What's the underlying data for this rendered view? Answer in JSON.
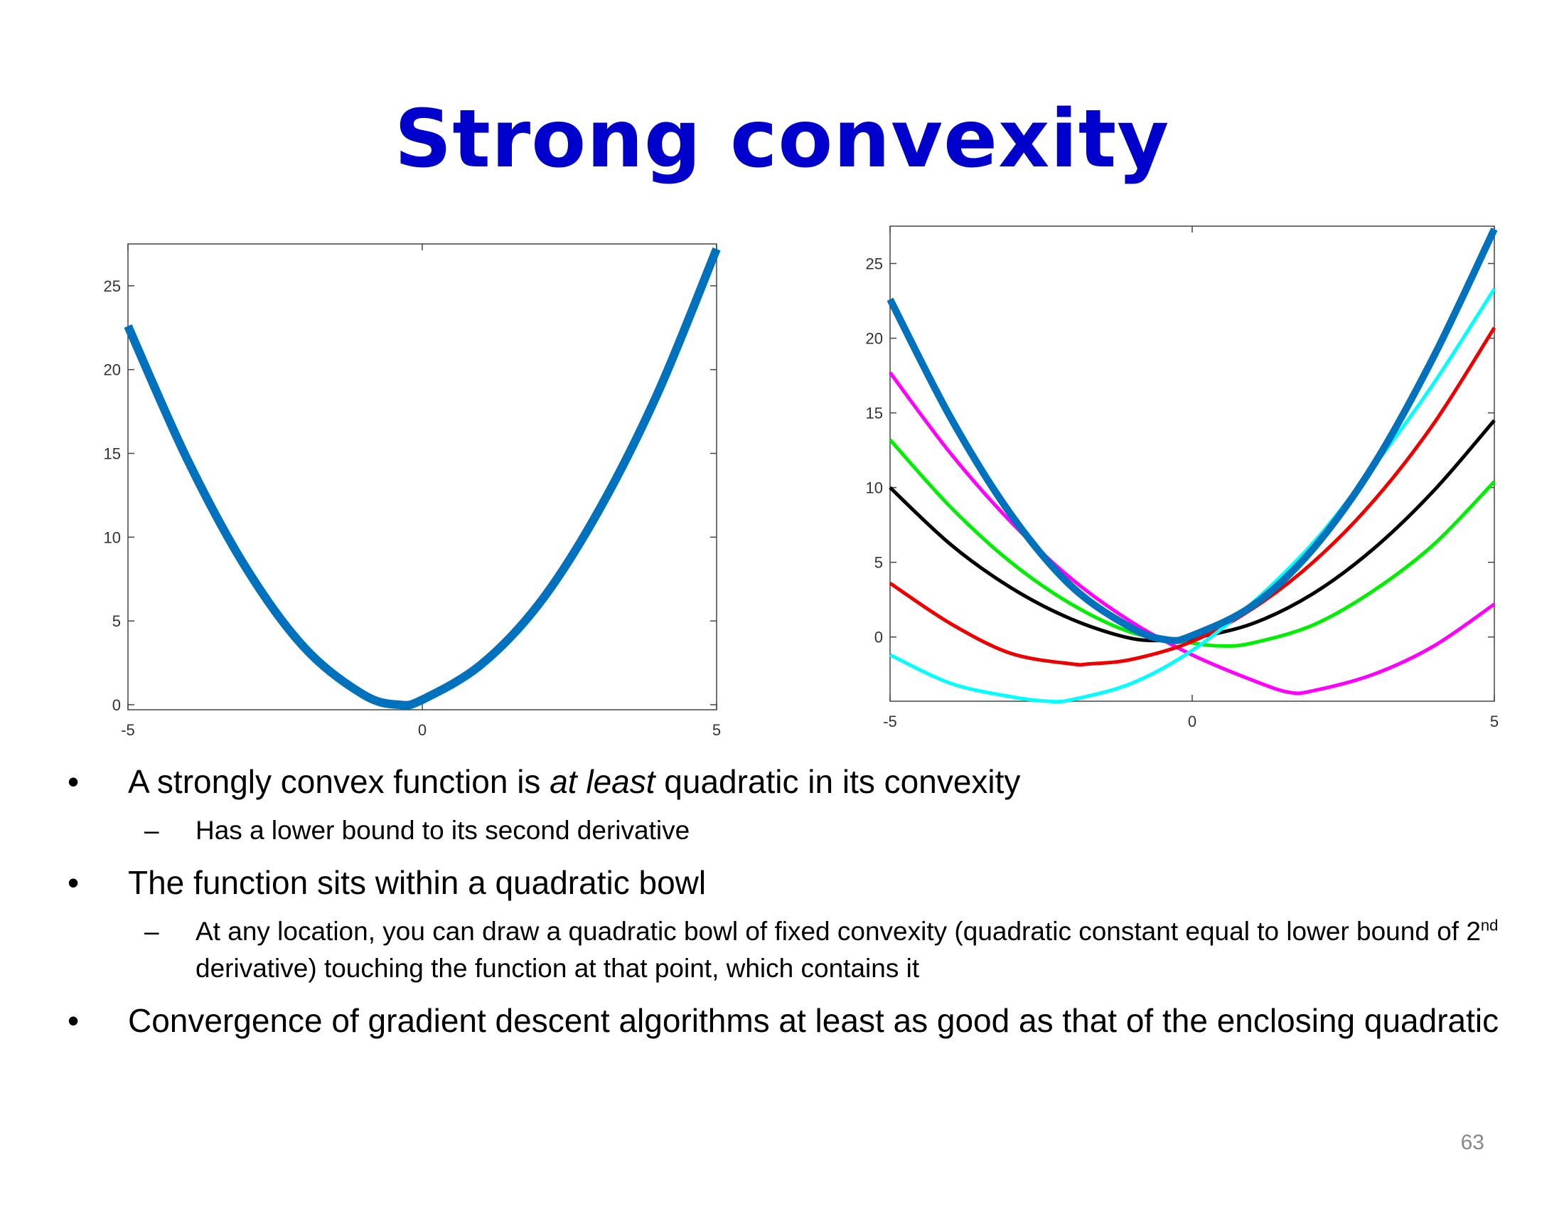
{
  "title": "Strong convexity",
  "page_number": "63",
  "bullets": [
    {
      "level": 1,
      "marker": "•",
      "parts": [
        {
          "text": "A strongly convex function is "
        },
        {
          "text": "at least",
          "italic": true
        },
        {
          "text": " quadratic in its convexity"
        }
      ]
    },
    {
      "level": 2,
      "marker": "–",
      "parts": [
        {
          "text": "Has a lower bound to its second derivative"
        }
      ]
    },
    {
      "level": 1,
      "marker": "•",
      "parts": [
        {
          "text": "The function sits within a quadratic bowl"
        }
      ]
    },
    {
      "level": 2,
      "marker": "–",
      "parts": [
        {
          "text": "At any location, you can draw a quadratic bowl of fixed convexity (quadratic constant equal to lower bound of 2"
        },
        {
          "text": "nd",
          "sup": true
        },
        {
          "text": " derivative) touching the function at that point, which contains it"
        }
      ]
    },
    {
      "level": 1,
      "marker": "•",
      "parts": [
        {
          "text": "Convergence of gradient descent algorithms at least as good as that of the enclosing quadratic"
        }
      ]
    }
  ],
  "chart_data": [
    {
      "type": "line",
      "title": "",
      "xlabel": "",
      "ylabel": "",
      "xlim": [
        -5,
        5
      ],
      "ylim": [
        -0.3,
        27.5
      ],
      "xticks": [
        -5,
        0,
        5
      ],
      "yticks": [
        0,
        5,
        10,
        15,
        20,
        25
      ],
      "grid": false,
      "series": [
        {
          "color": "#0072bd",
          "x": [
            -5,
            -4,
            -3,
            -2,
            -1,
            -0.4,
            0,
            1,
            2,
            3,
            4,
            5
          ],
          "y": [
            22.6,
            14.7,
            8.2,
            3.4,
            0.6,
            0,
            0.3,
            2.4,
            6.1,
            11.6,
            18.6,
            27.2
          ]
        }
      ]
    },
    {
      "type": "line",
      "title": "",
      "xlabel": "",
      "ylabel": "",
      "xlim": [
        -5,
        5
      ],
      "ylim": [
        -4.3,
        27.5
      ],
      "xticks": [
        -5,
        0,
        5
      ],
      "yticks": [
        0,
        5,
        10,
        15,
        20,
        25
      ],
      "grid": false,
      "series": [
        {
          "color": "#ff00ff",
          "x": [
            -5,
            -4,
            -3,
            -2,
            -1,
            0,
            1,
            1.6,
            2,
            3,
            4,
            5
          ],
          "y": [
            17.7,
            12.3,
            7.7,
            3.9,
            1.0,
            -1.2,
            -2.9,
            -3.7,
            -3.6,
            -2.5,
            -0.6,
            2.2
          ]
        },
        {
          "color": "#00ee00",
          "x": [
            -5,
            -4,
            -3,
            -2,
            -1,
            0,
            0.5,
            1,
            2,
            3,
            4,
            5
          ],
          "y": [
            13.2,
            8.7,
            5.0,
            2.2,
            0.3,
            -0.4,
            -0.6,
            -0.4,
            0.8,
            3.1,
            6.2,
            10.4
          ]
        },
        {
          "color": "#000000",
          "x": [
            -5,
            -4,
            -3,
            -2,
            -1,
            -0.3,
            0,
            1,
            2,
            3,
            4,
            5
          ],
          "y": [
            10.0,
            6.2,
            3.3,
            1.2,
            -0.1,
            -0.2,
            -0.1,
            0.9,
            2.9,
            5.9,
            9.8,
            14.5
          ]
        },
        {
          "color": "#ee0000",
          "x": [
            -5,
            -4,
            -3,
            -2,
            -1.7,
            -1,
            0,
            1,
            2,
            3,
            4,
            5
          ],
          "y": [
            3.6,
            0.9,
            -1.1,
            -1.8,
            -1.8,
            -1.5,
            -0.3,
            1.9,
            5.0,
            9.1,
            14.3,
            20.7
          ]
        },
        {
          "color": "#00ffff",
          "x": [
            -5,
            -4,
            -3,
            -2.4,
            -2,
            -1,
            0,
            1,
            2,
            3,
            4,
            5
          ],
          "y": [
            -1.2,
            -3.1,
            -4.0,
            -4.3,
            -4.2,
            -3.1,
            -0.9,
            2.3,
            6.3,
            11.4,
            17.0,
            23.3
          ]
        },
        {
          "color": "#0072bd",
          "bold": true,
          "x": [
            -5,
            -4,
            -3,
            -2,
            -1,
            -0.4,
            0,
            1,
            2,
            3,
            4,
            5
          ],
          "y": [
            22.6,
            14.7,
            8.2,
            3.4,
            0.6,
            -0.2,
            0.1,
            2.1,
            5.9,
            11.5,
            18.8,
            27.3
          ]
        }
      ]
    }
  ]
}
